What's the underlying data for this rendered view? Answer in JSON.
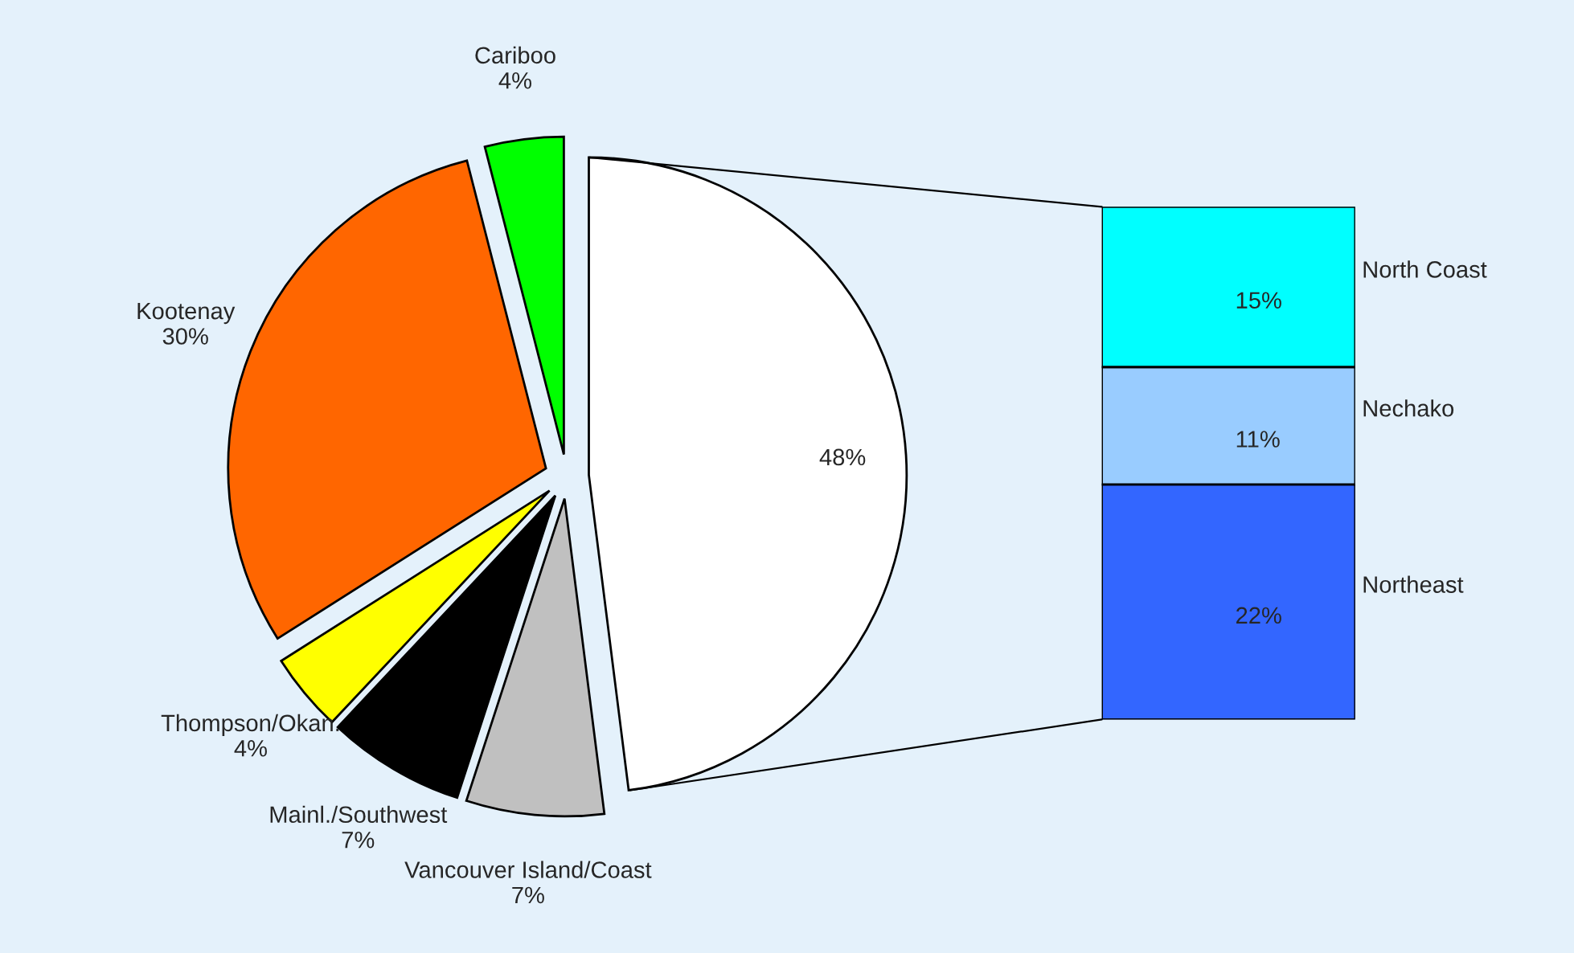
{
  "chart_data": [
    {
      "type": "pie",
      "categories": [
        null,
        "Vancouver Island/Coast",
        "Mainl./Southwest",
        "Thompson/Okan.",
        "Kootenay",
        "Cariboo"
      ],
      "values": [
        48,
        7,
        7,
        4,
        30,
        4
      ],
      "value_labels": [
        "48%",
        "7%",
        "7%",
        "4%",
        "30%",
        "4%"
      ],
      "colors": [
        "#ffffff",
        "#c0c0c0",
        "#000000",
        "#ffff00",
        "#ff6600",
        "#00ff00"
      ],
      "legend": false
    },
    {
      "type": "bar",
      "stacked": true,
      "categories": [
        null
      ],
      "legend": false,
      "series": [
        {
          "name": "Northeast",
          "color": "#3366ff",
          "values": [
            22
          ],
          "value_labels": [
            "22%"
          ]
        },
        {
          "name": "Nechako",
          "color": "#99ccff",
          "values": [
            11
          ],
          "value_labels": [
            "11%"
          ]
        },
        {
          "name": "North Coast",
          "color": "#00ffff",
          "values": [
            15
          ],
          "value_labels": [
            "15%"
          ]
        }
      ]
    }
  ]
}
